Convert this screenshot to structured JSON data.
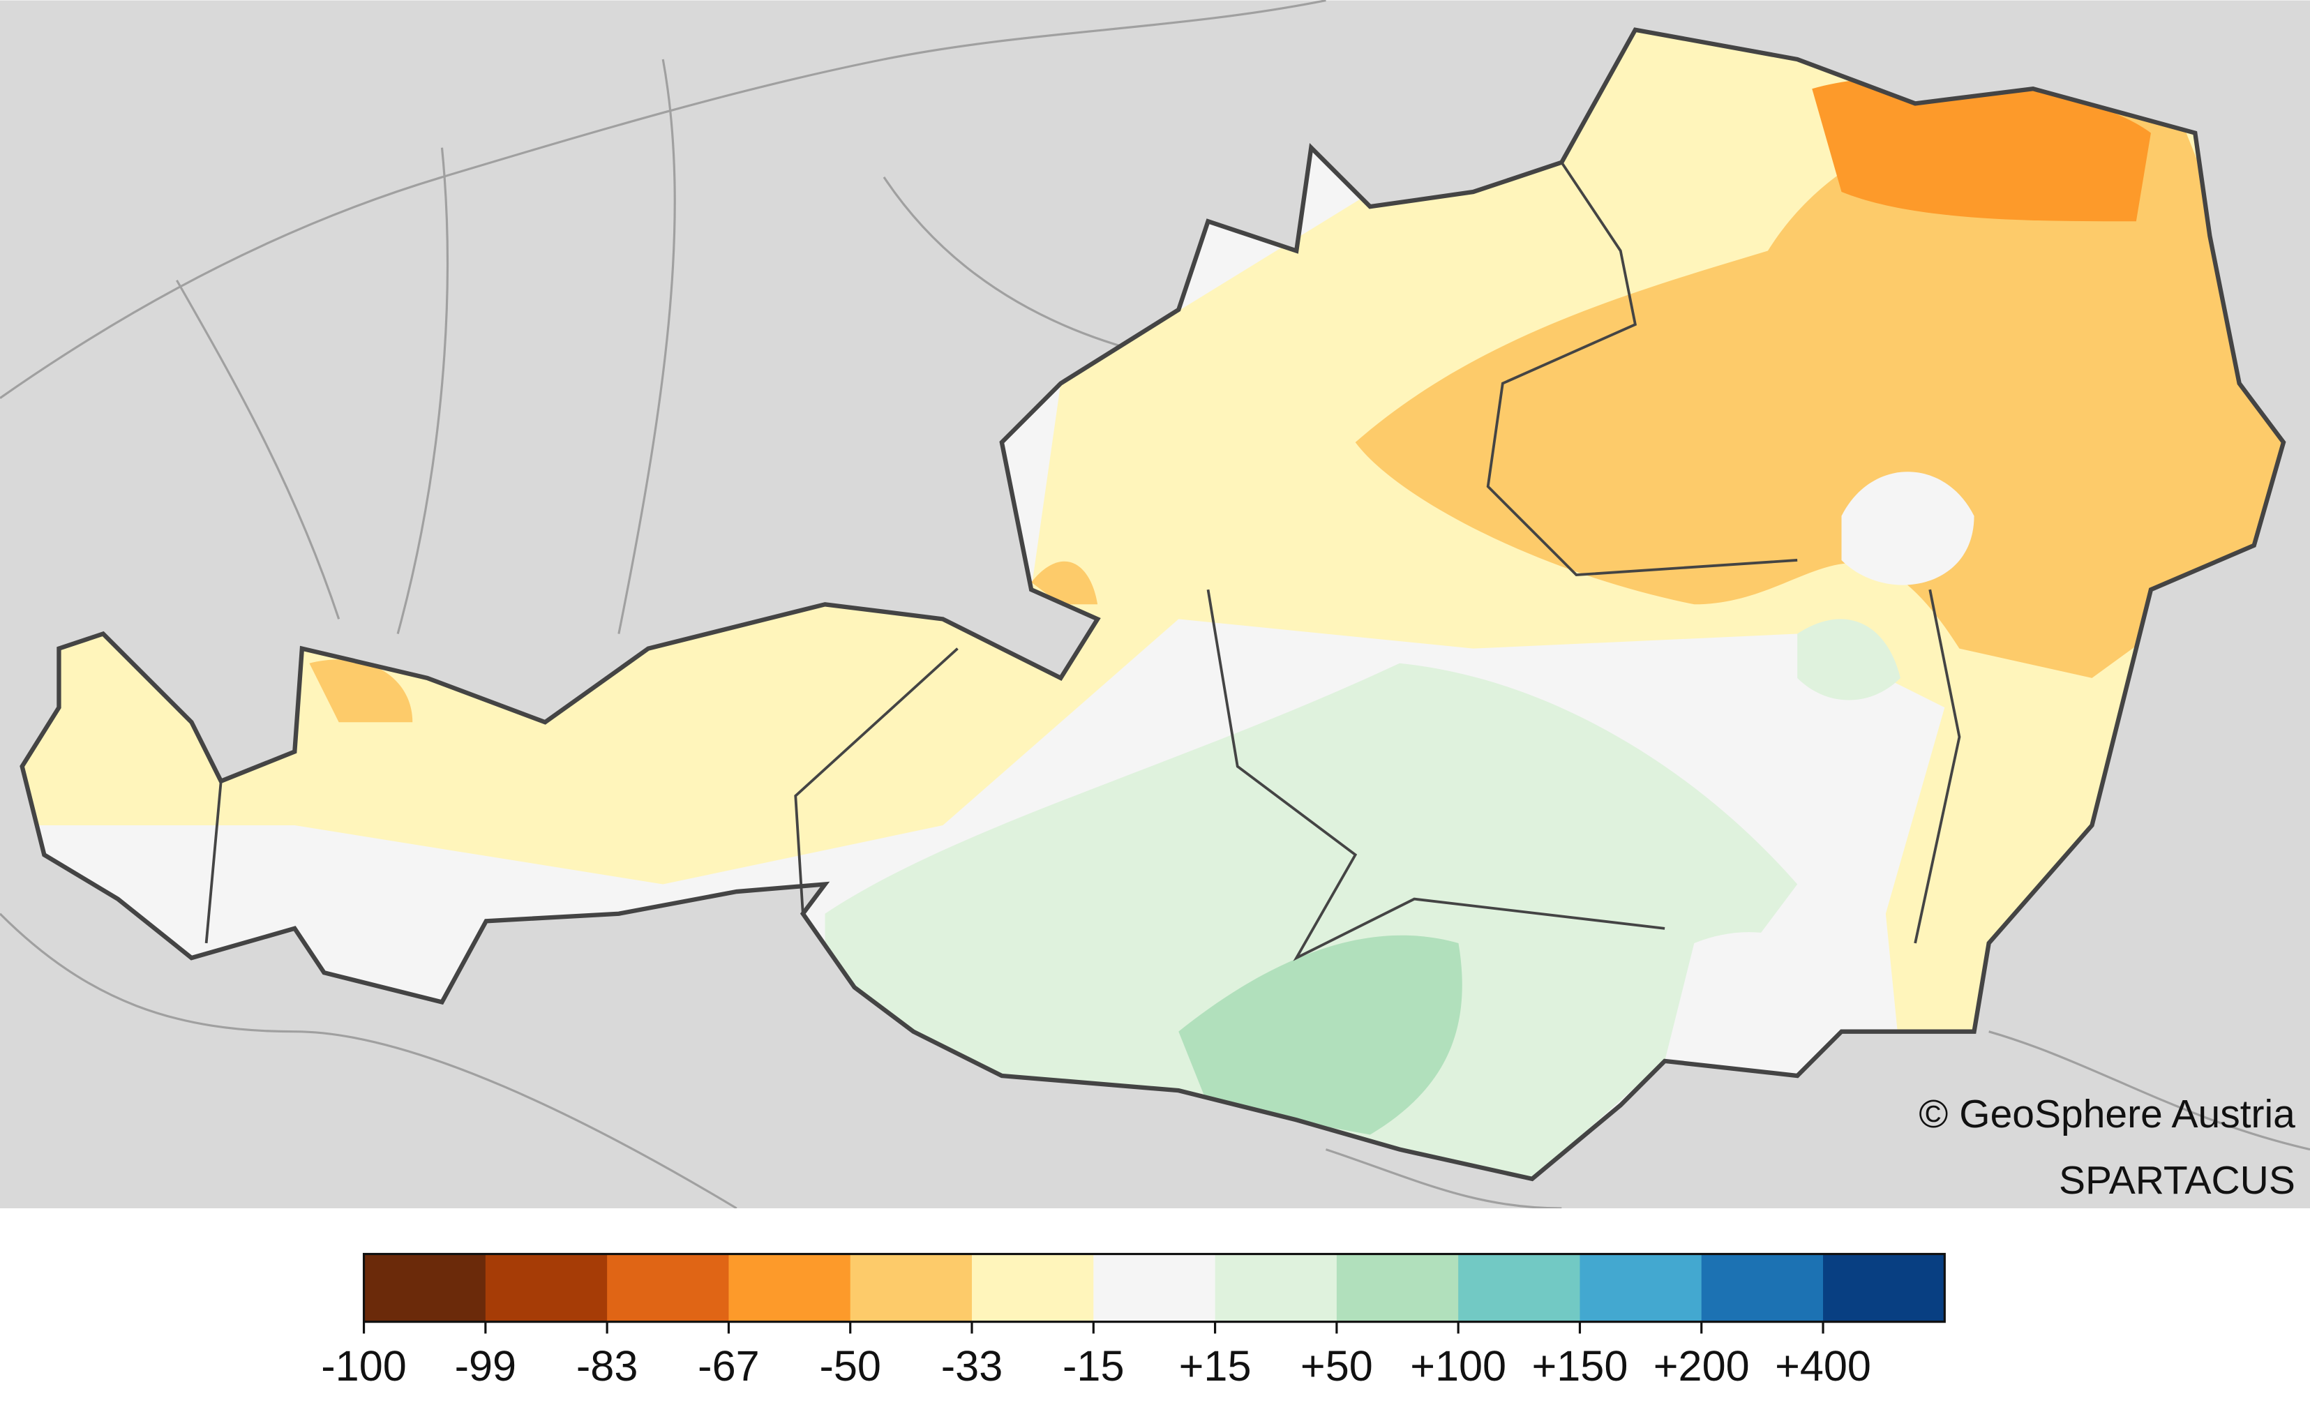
{
  "map": {
    "attribution": "© GeoSphere Austria",
    "source": "SPARTACUS"
  },
  "legend": {
    "items": [
      {
        "label": "-100",
        "color": "#6b2a0a"
      },
      {
        "label": "-99",
        "color": "#a63c06"
      },
      {
        "label": "-83",
        "color": "#e06515"
      },
      {
        "label": "-67",
        "color": "#fd9a2a"
      },
      {
        "label": "-50",
        "color": "#fdcb6a"
      },
      {
        "label": "-33",
        "color": "#fff5bb"
      },
      {
        "label": "-15",
        "color": "#f5f5f5"
      },
      {
        "label": "+15",
        "color": "#dff2dd"
      },
      {
        "label": "+50",
        "color": "#b1e0bc"
      },
      {
        "label": "+100",
        "color": "#72c9c4"
      },
      {
        "label": "+150",
        "color": "#43a8d0"
      },
      {
        "label": "+200",
        "color": "#1c72b3"
      },
      {
        "label": "+400",
        "color": "#083f82"
      }
    ]
  }
}
